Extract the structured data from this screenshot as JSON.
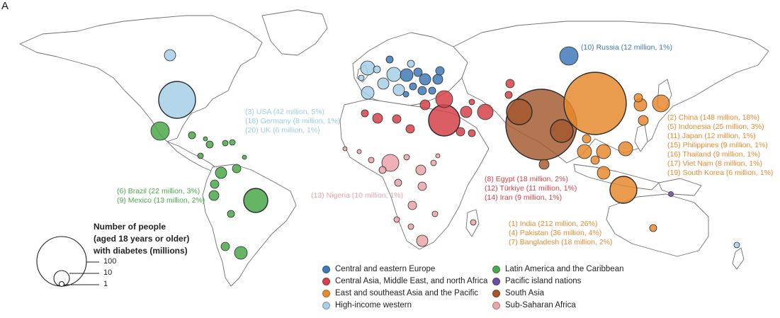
{
  "panel_letter": "A",
  "colors": {
    "ceeurope": "#3f79b8",
    "hiw": "#a7cfe6",
    "latam": "#4aa84a",
    "ssa": "#eba3a8",
    "cmena": "#d6424a",
    "south": "#a4582c",
    "east": "#e88a2e",
    "pacific": "#6a4fa3"
  },
  "labels": {
    "russia": [
      "(10) Russia (12 million, 1%)"
    ],
    "hiw": [
      "(3) USA (42 million, 5%)",
      "(18) Germany (8 million, 1%)",
      "(20) UK (6 million, 1%)"
    ],
    "latam": [
      "(6) Brazil (22 million, 3%)",
      "(9) Mexico (13 million, 2%)"
    ],
    "ssa": [
      "(13) Nigeria (10 million, 1%)"
    ],
    "cmena": [
      "(8) Egypt (18 million, 2%)",
      "(12) Türkiye (11 million, 1%)",
      "(14) Iran (9 million, 1%)"
    ],
    "south": [
      "(1) India (212 million, 26%)",
      "(4) Pakistan (36 million, 4%)",
      "(7) Bangladesh (18 million, 2%)"
    ],
    "east": [
      "(2) China (148 million, 18%)",
      "(5) Indonesia (25 million, 3%)",
      "(11) Japan (12 million, 1%)",
      "(15) Philippines (9 million, 1%)",
      "(16) Thailand (9 million, 1%)",
      "(17) Viet Nam (8 million, 1%)",
      "(19) South Korea (6 million, 1%)"
    ]
  },
  "size_legend": {
    "title_lines": [
      "Number of people",
      "(aged 18 years or older)",
      "with diabetes (millions)"
    ],
    "ticks": [
      "100",
      "10",
      "1"
    ]
  },
  "legend": [
    {
      "label": "Central and eastern Europe",
      "color_key": "ceeurope"
    },
    {
      "label": "Central Asia, Middle East, and north Africa",
      "color_key": "cmena"
    },
    {
      "label": "East and southeast Asia and the Pacific",
      "color_key": "east"
    },
    {
      "label": "High-income western",
      "color_key": "hiw"
    },
    {
      "label": "Latin America and the Caribbean",
      "color_key": "latam"
    },
    {
      "label": "Pacific island nations",
      "color_key": "pacific"
    },
    {
      "label": "South Asia",
      "color_key": "south"
    },
    {
      "label": "Sub-Saharan Africa",
      "color_key": "ssa"
    }
  ]
}
